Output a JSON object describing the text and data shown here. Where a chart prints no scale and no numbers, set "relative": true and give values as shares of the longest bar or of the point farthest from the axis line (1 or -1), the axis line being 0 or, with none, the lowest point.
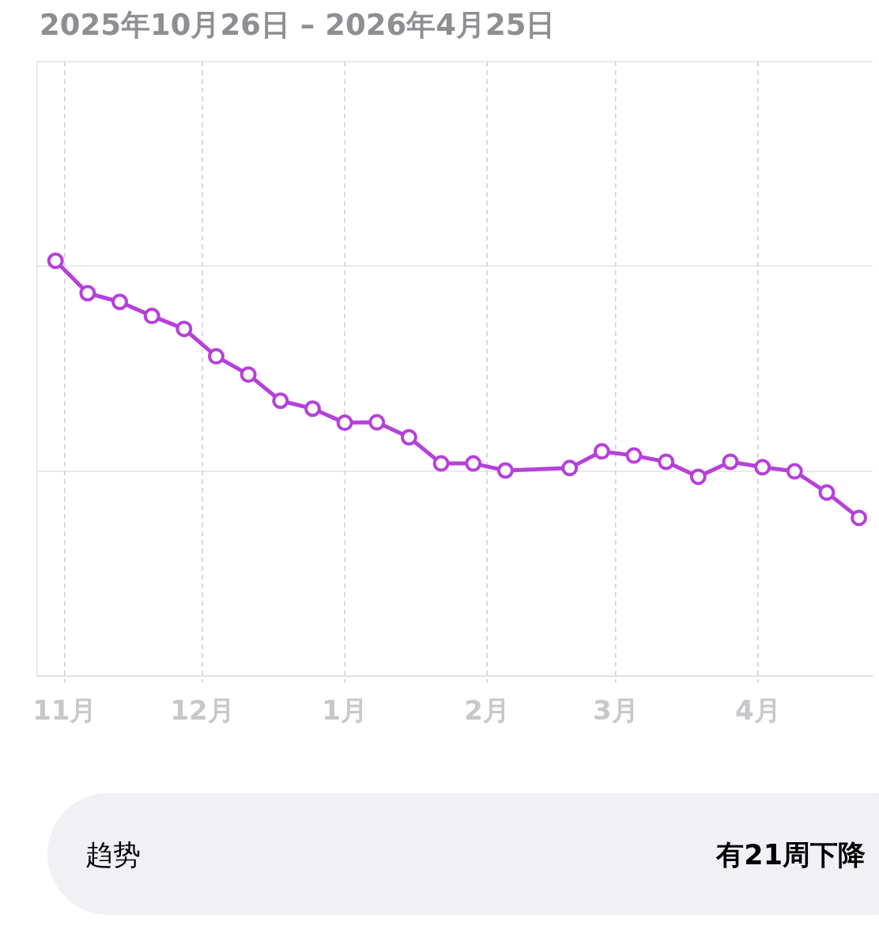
{
  "chart_data": {
    "type": "line",
    "title": "2025年10月26日 – 2026年4月25日",
    "relative": true,
    "x": [
      "2025-10-30",
      "2025-11-06",
      "2025-11-13",
      "2025-11-20",
      "2025-11-27",
      "2025-12-04",
      "2025-12-11",
      "2025-12-18",
      "2025-12-25",
      "2026-01-01",
      "2026-01-08",
      "2026-01-15",
      "2026-01-22",
      "2026-01-29",
      "2026-02-05",
      "2026-02-19",
      "2026-02-26",
      "2026-03-05",
      "2026-03-12",
      "2026-03-19",
      "2026-03-26",
      "2026-04-02",
      "2026-04-09",
      "2026-04-16",
      "2026-04-23"
    ],
    "series": [
      {
        "color": "#b541d9",
        "values": [
          1.0,
          0.922,
          0.901,
          0.867,
          0.836,
          0.77,
          0.726,
          0.663,
          0.644,
          0.61,
          0.611,
          0.575,
          0.512,
          0.512,
          0.495,
          0.501,
          0.541,
          0.531,
          0.516,
          0.48,
          0.516,
          0.503,
          0.493,
          0.442,
          0.381
        ]
      }
    ],
    "xlim": [
      "2025-10-26",
      "2026-04-26"
    ],
    "xticks": [
      {
        "value": "2025-11-01",
        "label": "11月"
      },
      {
        "value": "2025-12-01",
        "label": "12月"
      },
      {
        "value": "2026-01-01",
        "label": "1月"
      },
      {
        "value": "2026-02-01",
        "label": "2月"
      },
      {
        "value": "2026-03-01",
        "label": "3月"
      },
      {
        "value": "2026-04-01",
        "label": "4月"
      }
    ],
    "grid": "x",
    "marker": "circle",
    "line_style": "solid",
    "ref_lines": [
      {
        "axis": "y",
        "value": 0.987,
        "color": "#e3e3e6"
      },
      {
        "axis": "y",
        "value": 0.493,
        "color": "#e3e3e6"
      }
    ],
    "annotations": [
      "趋势",
      "有21周下降"
    ]
  }
}
